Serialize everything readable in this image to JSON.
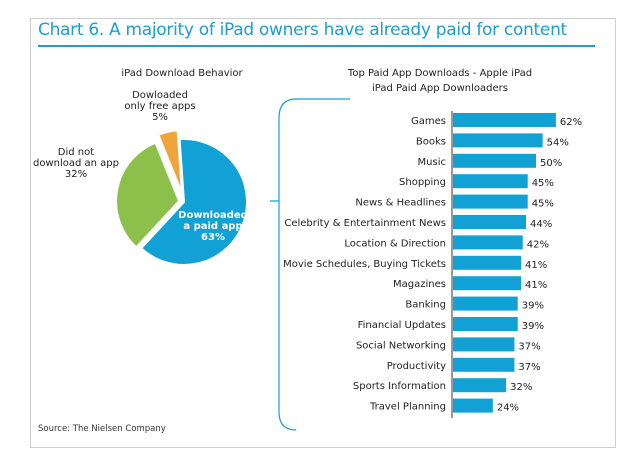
{
  "title": "Chart 6. A majority of iPad owners have already paid for content",
  "source": "Source: The Nielsen Company",
  "chart_data": [
    {
      "type": "pie",
      "title": "iPad Download Behavior",
      "slices": [
        {
          "label": "Downloaded a paid app",
          "value": 63,
          "label_lines": [
            "Downloaded",
            "a paid app",
            "63%"
          ],
          "color": "#12a1d4"
        },
        {
          "label": "Did not download an app",
          "value": 32,
          "label_lines": [
            "Did not",
            "download an app",
            "32%"
          ],
          "color": "#8cc04b"
        },
        {
          "label": "Dowloaded only free apps",
          "value": 5,
          "label_lines": [
            "Dowloaded",
            "only free apps",
            "5%"
          ],
          "color": "#f0a43a"
        }
      ]
    },
    {
      "type": "bar",
      "orientation": "horizontal",
      "title": "Top Paid App Downloads - Apple iPad",
      "subtitle": "iPad Paid App Downloaders",
      "categories": [
        "Games",
        "Books",
        "Music",
        "Shopping",
        "News & Headlines",
        "Celebrity & Entertainment News",
        "Location & Direction",
        "Movie Schedules, Buying Tickets",
        "Magazines",
        "Banking",
        "Financial Updates",
        "Social Networking",
        "Productivity",
        "Sports Information",
        "Travel Planning"
      ],
      "values": [
        62,
        54,
        50,
        45,
        45,
        44,
        42,
        41,
        41,
        39,
        39,
        37,
        37,
        32,
        24
      ],
      "value_suffix": "%",
      "color": "#12a1d4"
    }
  ]
}
